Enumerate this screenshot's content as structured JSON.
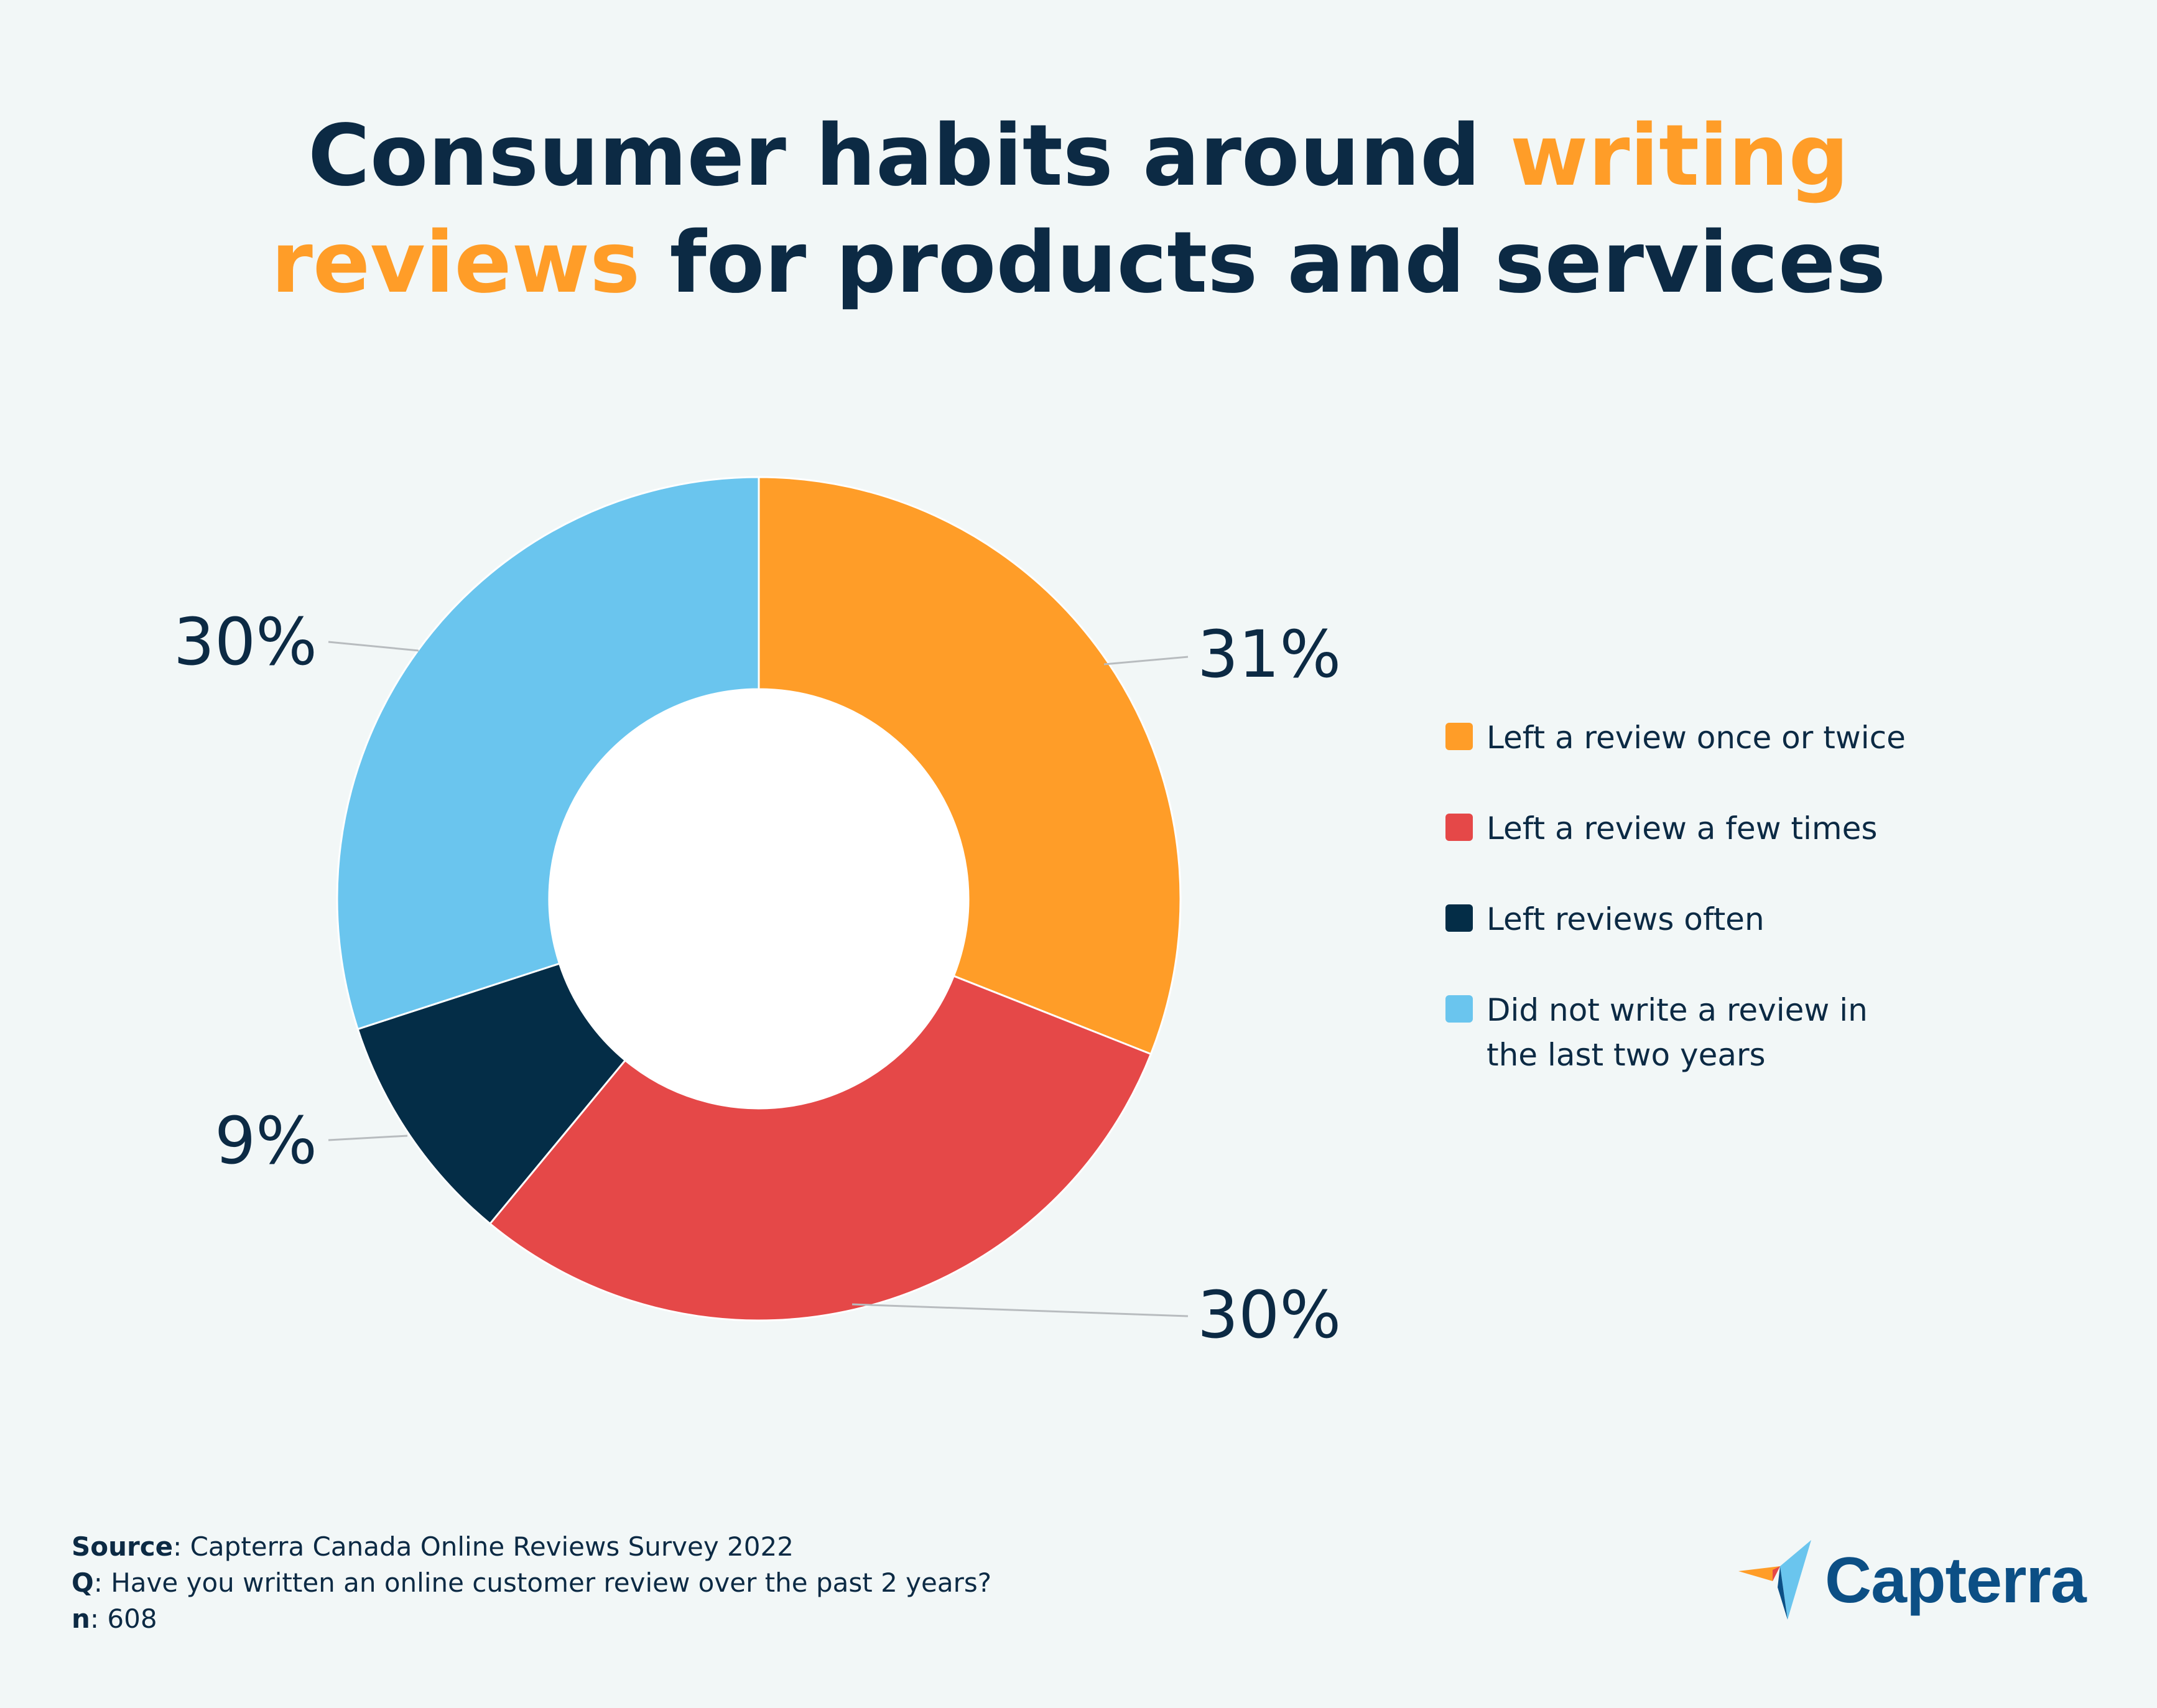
{
  "title": {
    "part1": "Consumer habits around ",
    "highlight1": "writing",
    "highlight2": "reviews",
    "part2": " for products and services"
  },
  "chart_data": {
    "type": "pie",
    "title": "Consumer habits around writing reviews for products and services",
    "categories": [
      "Left a review once or twice",
      "Left a review a few times",
      "Left reviews often",
      "Did not write a review in the last two years"
    ],
    "values": [
      31,
      30,
      9,
      30
    ],
    "labels": [
      "31%",
      "30%",
      "9%",
      "30%"
    ],
    "colors": [
      "#ff9d28",
      "#e54848",
      "#042d47",
      "#6ac5ee"
    ],
    "donut": true,
    "legend": "right"
  },
  "legend": {
    "items": [
      {
        "label": "Left a review once or twice",
        "color": "#ff9d28"
      },
      {
        "label": "Left a review a few times",
        "color": "#e54848"
      },
      {
        "label": "Left reviews often",
        "color": "#042d47"
      },
      {
        "label_line1": "Did not write a review in",
        "label_line2": "the last two years",
        "color": "#6ac5ee"
      }
    ]
  },
  "footer": {
    "source_label": "Source",
    "source_text": ": Capterra Canada Online Reviews Survey 2022",
    "q_label": "Q",
    "q_text": ": Have you written an online customer review over the past 2 years?",
    "n_label": "n",
    "n_text": ": 608"
  },
  "logo": {
    "text": "Capterra"
  }
}
